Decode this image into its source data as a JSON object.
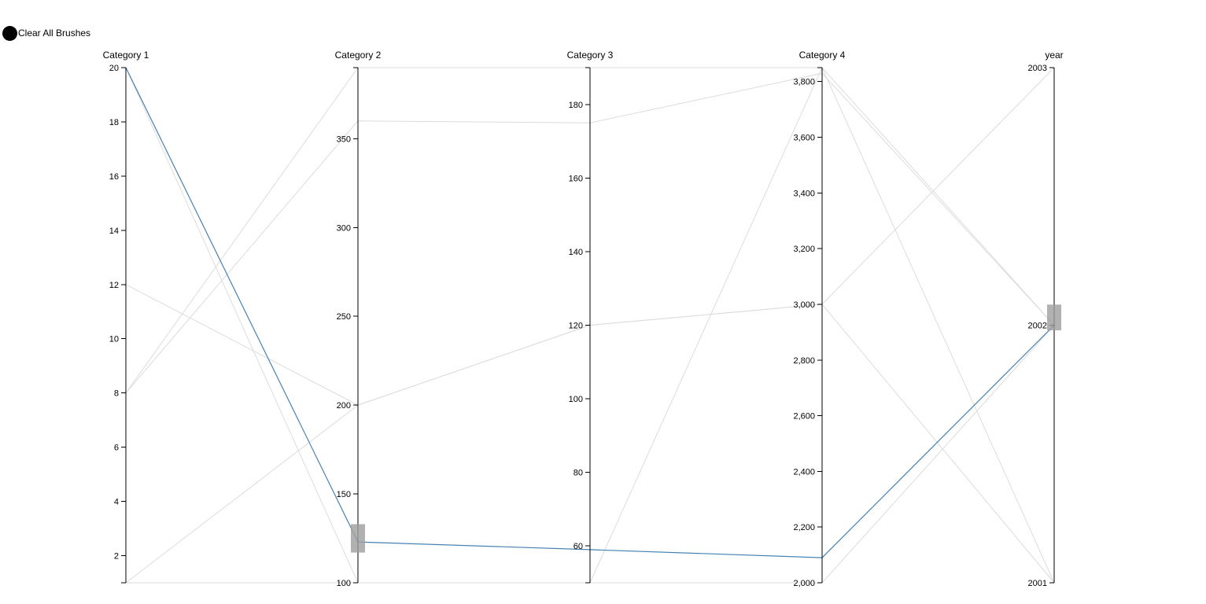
{
  "controls": {
    "clear_label": "Clear All Brushes"
  },
  "chart_data": {
    "type": "parallel-coordinates",
    "dimensions": [
      {
        "name": "Category 1",
        "domain": [
          1,
          20
        ],
        "ticks": [
          2,
          4,
          6,
          8,
          10,
          12,
          14,
          16,
          18,
          20
        ],
        "tick_labels": [
          "2",
          "4",
          "6",
          "8",
          "10",
          "12",
          "14",
          "16",
          "18",
          "20"
        ]
      },
      {
        "name": "Category 2",
        "domain": [
          100,
          390
        ],
        "ticks": [
          100,
          150,
          200,
          250,
          300,
          350
        ],
        "tick_labels": [
          "100",
          "150",
          "200",
          "250",
          "300",
          "350"
        ]
      },
      {
        "name": "Category 3",
        "domain": [
          50,
          190
        ],
        "ticks": [
          60,
          80,
          100,
          120,
          140,
          160,
          180
        ],
        "tick_labels": [
          "60",
          "80",
          "100",
          "120",
          "140",
          "160",
          "180"
        ]
      },
      {
        "name": "Category 4",
        "domain": [
          2000,
          3850
        ],
        "ticks": [
          2000,
          2200,
          2400,
          2600,
          2800,
          3000,
          3200,
          3400,
          3600,
          3800
        ],
        "tick_labels": [
          "2,000",
          "2,200",
          "2,400",
          "2,600",
          "2,800",
          "3,000",
          "3,200",
          "3,400",
          "3,600",
          "3,800"
        ]
      },
      {
        "name": "year",
        "domain": [
          2001,
          2003
        ],
        "ticks": [
          2001,
          2002,
          2003
        ],
        "tick_labels": [
          "2001",
          "2002",
          "2003"
        ]
      }
    ],
    "rows": [
      {
        "values": [
          20,
          123,
          59,
          2090,
          2002
        ],
        "selected": true
      },
      {
        "values": [
          20,
          100,
          50,
          3850,
          2001
        ],
        "selected": false
      },
      {
        "values": [
          12,
          200,
          120,
          3000,
          2001
        ],
        "selected": false
      },
      {
        "values": [
          8,
          360,
          175,
          3830,
          2002
        ],
        "selected": false
      },
      {
        "values": [
          8,
          390,
          190,
          3850,
          2002
        ],
        "selected": false
      },
      {
        "values": [
          1,
          200,
          120,
          3000,
          2003
        ],
        "selected": false
      },
      {
        "values": [
          1,
          100,
          50,
          2000,
          2002
        ],
        "selected": false
      }
    ],
    "brushes": [
      {
        "dimension": "Category 2",
        "range": [
          117,
          133
        ]
      },
      {
        "dimension": "year",
        "range": [
          2001.98,
          2002.08
        ]
      }
    ],
    "colors": {
      "selected": "#4682b4",
      "background": "#dcdcdc",
      "brush": "#9e9e9e"
    }
  }
}
